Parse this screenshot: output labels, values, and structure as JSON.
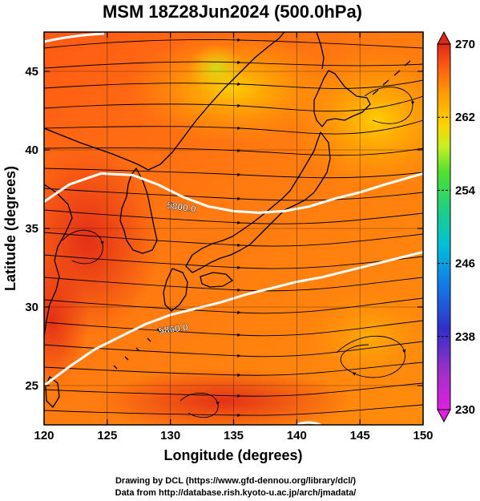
{
  "title": "MSM 18Z28Jun2024 (500.0hPa)",
  "xlabel": "Longitude (degrees)",
  "ylabel": "Latitude  (degrees)",
  "credits": {
    "line1": "Drawing by DCL (https://www.gfd-dennou.org/library/dcl/)",
    "line2": "Data from http://database.rish.kyoto-u.ac.jp/arch/jmadata/"
  },
  "map": {
    "lon_range": [
      120,
      150
    ],
    "lat_range": [
      22.5,
      47.5
    ],
    "lon_ticks": [
      120,
      125,
      130,
      135,
      140,
      145,
      150
    ],
    "lat_ticks": [
      25,
      30,
      35,
      40,
      45
    ],
    "grid": true
  },
  "colorbar": {
    "min": 230,
    "max": 270,
    "tick_labels": [
      "270",
      "262",
      "254",
      "246",
      "238",
      "230"
    ],
    "colors": [
      "#e2e",
      "#a3c",
      "#33c",
      "#14e",
      "#0bd",
      "#2d8",
      "#4e3",
      "#cf2",
      "#ffd200",
      "#ffa000",
      "#ff5a14",
      "#e02818"
    ]
  },
  "contours": [
    {
      "label": "5800.0",
      "points": [
        [
          120,
          36.7
        ],
        [
          122,
          37.8
        ],
        [
          124.5,
          38.5
        ],
        [
          127,
          38.4
        ],
        [
          129,
          37.8
        ],
        [
          131,
          37
        ],
        [
          133,
          36.4
        ],
        [
          135,
          36.1
        ],
        [
          137,
          36
        ],
        [
          139,
          36.1
        ],
        [
          141,
          36.4
        ],
        [
          143,
          36.9
        ],
        [
          145,
          37.3
        ],
        [
          147,
          37.8
        ],
        [
          150,
          38.5
        ]
      ]
    },
    {
      "label": "5860.0",
      "points": [
        [
          120,
          25
        ],
        [
          122,
          26.2
        ],
        [
          124,
          27.3
        ],
        [
          126,
          28.1
        ],
        [
          128,
          28.9
        ],
        [
          130,
          29.5
        ],
        [
          132,
          29.9
        ],
        [
          134,
          30.3
        ],
        [
          136,
          30.8
        ],
        [
          138,
          31.2
        ],
        [
          140,
          31.6
        ],
        [
          142,
          31.9
        ],
        [
          144,
          32.3
        ],
        [
          146,
          32.7
        ],
        [
          148,
          33.1
        ],
        [
          150,
          33.5
        ]
      ]
    }
  ]
}
